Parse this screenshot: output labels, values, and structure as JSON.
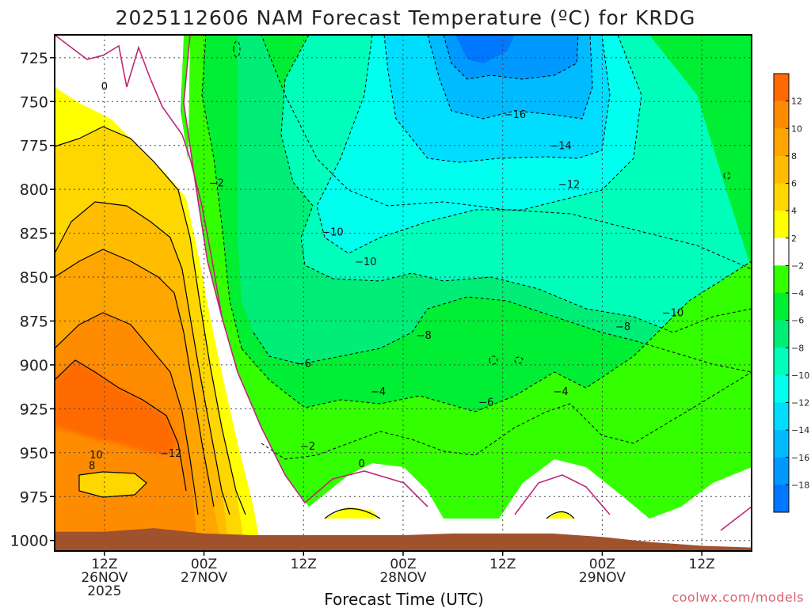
{
  "chart_data": {
    "type": "heatmap",
    "title": "2025112606 NAM Forecast Temperature (ºC) for KRDG",
    "xlabel": "Forecast Time (UTC)",
    "ylabel": "",
    "credit": "coolwx.com/models",
    "y_ticks": [
      "725",
      "750",
      "775",
      "800",
      "825",
      "850",
      "875",
      "900",
      "925",
      "950",
      "975",
      "1000"
    ],
    "y_tick_values": [
      725,
      750,
      775,
      800,
      825,
      850,
      875,
      900,
      925,
      950,
      975,
      1000
    ],
    "ylim": [
      712,
      1006
    ],
    "x_ticks": [
      {
        "hour": 6,
        "line1": "12Z",
        "line2": "26NOV",
        "line3": "2025"
      },
      {
        "hour": 18,
        "line1": "00Z",
        "line2": "27NOV",
        "line3": ""
      },
      {
        "hour": 30,
        "line1": "12Z",
        "line2": "",
        "line3": ""
      },
      {
        "hour": 42,
        "line1": "00Z",
        "line2": "28NOV",
        "line3": ""
      },
      {
        "hour": 54,
        "line1": "12Z",
        "line2": "",
        "line3": ""
      },
      {
        "hour": 66,
        "line1": "00Z",
        "line2": "29NOV",
        "line3": ""
      },
      {
        "hour": 78,
        "line1": "12Z",
        "line2": "",
        "line3": ""
      }
    ],
    "xlim": [
      0,
      84
    ],
    "colorbar": {
      "labels": [
        "12",
        "10",
        "8",
        "6",
        "4",
        "2",
        "−2",
        "−4",
        "−6",
        "−8",
        "−10",
        "−12",
        "−14",
        "−16",
        "−18"
      ],
      "values": [
        12,
        10,
        8,
        6,
        4,
        2,
        -2,
        -4,
        -6,
        -8,
        -10,
        -12,
        -14,
        -16,
        -18
      ],
      "colors": [
        "#ff6a00",
        "#ff8c00",
        "#ffa500",
        "#ffbc00",
        "#ffd700",
        "#ffff00",
        "#ffffff",
        "#33ff00",
        "#00ee33",
        "#00ee77",
        "#00ffbb",
        "#00ffee",
        "#00ddff",
        "#00bbff",
        "#0099ff",
        "#0077ff"
      ]
    },
    "contour_labels": [
      {
        "text": "0",
        "hour": 6.0,
        "p": 741
      },
      {
        "text": "−2",
        "hour": 19.5,
        "p": 796
      },
      {
        "text": "−16",
        "hour": 55.5,
        "p": 757
      },
      {
        "text": "−14",
        "hour": 61.0,
        "p": 775
      },
      {
        "text": "−12",
        "hour": 62.0,
        "p": 797
      },
      {
        "text": "−10",
        "hour": 33.5,
        "p": 824
      },
      {
        "text": "−10",
        "hour": 37.5,
        "p": 841
      },
      {
        "text": "−10",
        "hour": 74.5,
        "p": 870
      },
      {
        "text": "−8",
        "hour": 44.5,
        "p": 883
      },
      {
        "text": "−8",
        "hour": 68.5,
        "p": 878
      },
      {
        "text": "−6",
        "hour": 30.0,
        "p": 899
      },
      {
        "text": "−6",
        "hour": 52.0,
        "p": 921
      },
      {
        "text": "−4",
        "hour": 39.0,
        "p": 915
      },
      {
        "text": "−4",
        "hour": 61.0,
        "p": 915
      },
      {
        "text": "−2",
        "hour": 30.5,
        "p": 946
      },
      {
        "text": "0",
        "hour": 37.0,
        "p": 956
      },
      {
        "text": "−12",
        "hour": 14.0,
        "p": 950
      },
      {
        "text": "10",
        "hour": 5.0,
        "p": 951
      },
      {
        "text": "8",
        "hour": 4.5,
        "p": 957
      }
    ],
    "series": [
      {
        "name": "ground surface pressure",
        "hour": [
          0,
          6,
          12,
          18,
          24,
          30,
          36,
          42,
          48,
          54,
          60,
          66,
          72,
          78,
          84
        ],
        "p": [
          995,
          995,
          993,
          996,
          997,
          997,
          997,
          997,
          996,
          996,
          996,
          998,
          1001,
          1003,
          1004
        ]
      }
    ]
  }
}
